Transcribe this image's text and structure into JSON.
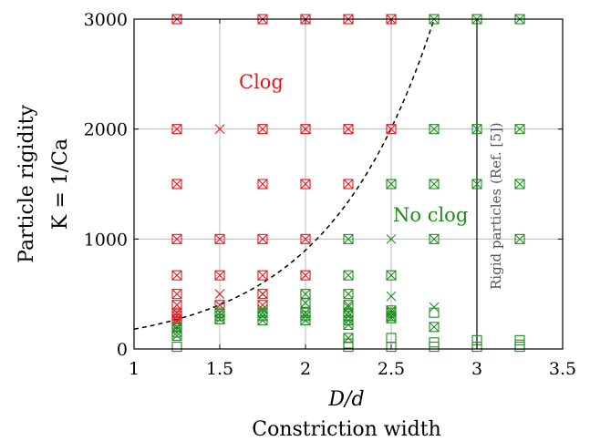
{
  "chart_data": {
    "type": "scatter",
    "xlabel": "D/d",
    "xlabel_sub": "Constriction width",
    "ylabel_line1": "Particle rigidity",
    "ylabel_line2": "K = 1/Ca",
    "xlim": [
      1,
      3.5
    ],
    "ylim": [
      0,
      3000
    ],
    "xticks": [
      1,
      1.5,
      2,
      2.5,
      3,
      3.5
    ],
    "yticks": [
      0,
      1000,
      2000,
      3000
    ],
    "xtick_labels": [
      "1",
      "1.5",
      "2",
      "2.5",
      "3",
      "3.5"
    ],
    "ytick_labels": [
      "0",
      "1000",
      "2000",
      "3000"
    ],
    "grid": true,
    "colors": {
      "clog": "#e8141a",
      "no_clog": "#1c8c1c",
      "curve": "#000000",
      "rigid_line": "#000000"
    },
    "annotations": {
      "clog": "Clog",
      "no_clog": "No clog",
      "rigid": "Rigid particles (Ref. [5])"
    },
    "rigid_boundary_x": 3,
    "fit_curve": {
      "style": "dashed",
      "K0": 180,
      "x0": 1,
      "x1": 2.75,
      "y1": 3000
    },
    "series": [
      {
        "marker": "square-x",
        "color": "clog",
        "points": [
          [
            1.25,
            3000
          ],
          [
            1.75,
            3000
          ],
          [
            2,
            3000
          ],
          [
            2.25,
            3000
          ],
          [
            2.5,
            3000
          ],
          [
            1.25,
            2000
          ],
          [
            1.75,
            2000
          ],
          [
            2,
            2000
          ],
          [
            2.25,
            2000
          ],
          [
            2.5,
            2000
          ],
          [
            1.25,
            1500
          ],
          [
            1.75,
            1500
          ],
          [
            2,
            1500
          ],
          [
            2.25,
            1500
          ],
          [
            1.25,
            1000
          ],
          [
            1.5,
            1000
          ],
          [
            1.75,
            1000
          ],
          [
            2,
            1000
          ],
          [
            1.25,
            670
          ],
          [
            1.5,
            670
          ],
          [
            1.75,
            670
          ],
          [
            2,
            670
          ],
          [
            1.25,
            500
          ],
          [
            1.75,
            500
          ],
          [
            1.25,
            400
          ],
          [
            1.25,
            330
          ],
          [
            1.25,
            300
          ],
          [
            1.25,
            270
          ],
          [
            1.5,
            400
          ],
          [
            1.75,
            400
          ],
          [
            1.25,
            250
          ]
        ]
      },
      {
        "marker": "x",
        "color": "clog",
        "points": [
          [
            1.5,
            2000
          ],
          [
            1.5,
            500
          ],
          [
            1.75,
            500
          ]
        ]
      },
      {
        "marker": "square-x",
        "color": "no_clog",
        "points": [
          [
            2.75,
            3000
          ],
          [
            3,
            3000
          ],
          [
            3.25,
            3000
          ],
          [
            2.75,
            2000
          ],
          [
            3,
            2000
          ],
          [
            3.25,
            2000
          ],
          [
            2.5,
            1500
          ],
          [
            2.75,
            1500
          ],
          [
            3,
            1500
          ],
          [
            3.25,
            1500
          ],
          [
            2.25,
            1000
          ],
          [
            2.75,
            1000
          ],
          [
            3.25,
            1000
          ],
          [
            2.25,
            670
          ],
          [
            2.5,
            670
          ],
          [
            2,
            500
          ],
          [
            2.25,
            500
          ],
          [
            2.25,
            400
          ],
          [
            2.25,
            330
          ],
          [
            2,
            420
          ],
          [
            2,
            330
          ],
          [
            2,
            300
          ],
          [
            2,
            260
          ],
          [
            1.75,
            330
          ],
          [
            1.75,
            300
          ],
          [
            1.75,
            260
          ],
          [
            1.5,
            330
          ],
          [
            1.5,
            300
          ],
          [
            1.5,
            270
          ],
          [
            2.5,
            330
          ],
          [
            2.5,
            300
          ],
          [
            2.5,
            280
          ],
          [
            2.5,
            350
          ],
          [
            1.25,
            200
          ],
          [
            1.25,
            150
          ],
          [
            1.25,
            120
          ],
          [
            2.75,
            200
          ],
          [
            2.25,
            300
          ],
          [
            2.25,
            260
          ],
          [
            2.25,
            220
          ],
          [
            2.25,
            100
          ]
        ]
      },
      {
        "marker": "x",
        "color": "no_clog",
        "points": [
          [
            2.5,
            1000
          ],
          [
            2.5,
            480
          ],
          [
            2.25,
            380
          ],
          [
            2.75,
            380
          ],
          [
            1.75,
            360
          ],
          [
            1.25,
            180
          ]
        ]
      },
      {
        "marker": "square",
        "color": "no_clog",
        "points": [
          [
            2.75,
            330
          ],
          [
            2.5,
            100
          ],
          [
            3,
            80
          ],
          [
            3.25,
            80
          ],
          [
            1.25,
            20
          ],
          [
            2.25,
            20
          ],
          [
            2.5,
            20
          ],
          [
            2.75,
            20
          ],
          [
            3,
            20
          ],
          [
            3.25,
            20
          ],
          [
            2.25,
            50
          ],
          [
            2.75,
            60
          ],
          [
            3.25,
            40
          ]
        ]
      }
    ]
  }
}
